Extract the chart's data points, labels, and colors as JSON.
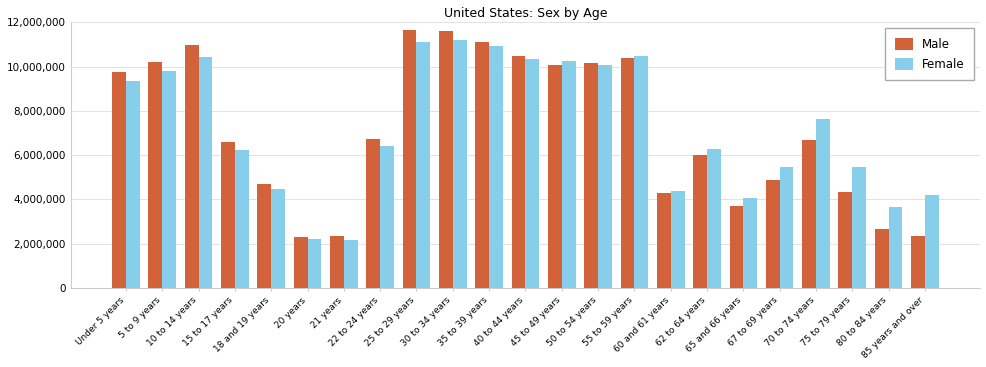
{
  "title": "United States: Sex by Age",
  "categories": [
    "Under 5 years",
    "5 to 9 years",
    "10 to 14 years",
    "15 to 17 years",
    "18 and 19 years",
    "20 years",
    "21 years",
    "22 to 24 years",
    "25 to 29 years",
    "30 to 34 years",
    "35 to 39 years",
    "40 to 44 years",
    "45 to 49 years",
    "50 to 54 years",
    "55 to 59 years",
    "60 and 61 years",
    "62 to 64 years",
    "65 and 66 years",
    "67 to 69 years",
    "70 to 74 years",
    "75 to 79 years",
    "80 to 84 years",
    "85 years and over"
  ],
  "male": [
    9750000,
    10200000,
    11000000,
    6600000,
    4700000,
    2300000,
    2350000,
    6750000,
    11650000,
    11600000,
    11100000,
    10500000,
    10100000,
    10150000,
    10400000,
    4300000,
    6000000,
    3700000,
    4900000,
    6700000,
    4350000,
    2650000,
    2350000
  ],
  "female": [
    9350000,
    9800000,
    10450000,
    6250000,
    4450000,
    2200000,
    2150000,
    6400000,
    11100000,
    11200000,
    10950000,
    10350000,
    10250000,
    10100000,
    10500000,
    4400000,
    6300000,
    4050000,
    5450000,
    7650000,
    5450000,
    3650000,
    4200000
  ],
  "male_color": "#d2623a",
  "female_color": "#87ceeb",
  "bar_width": 0.38,
  "ylim": [
    0,
    12000000
  ],
  "yticks": [
    0,
    2000000,
    4000000,
    6000000,
    8000000,
    10000000,
    12000000
  ]
}
